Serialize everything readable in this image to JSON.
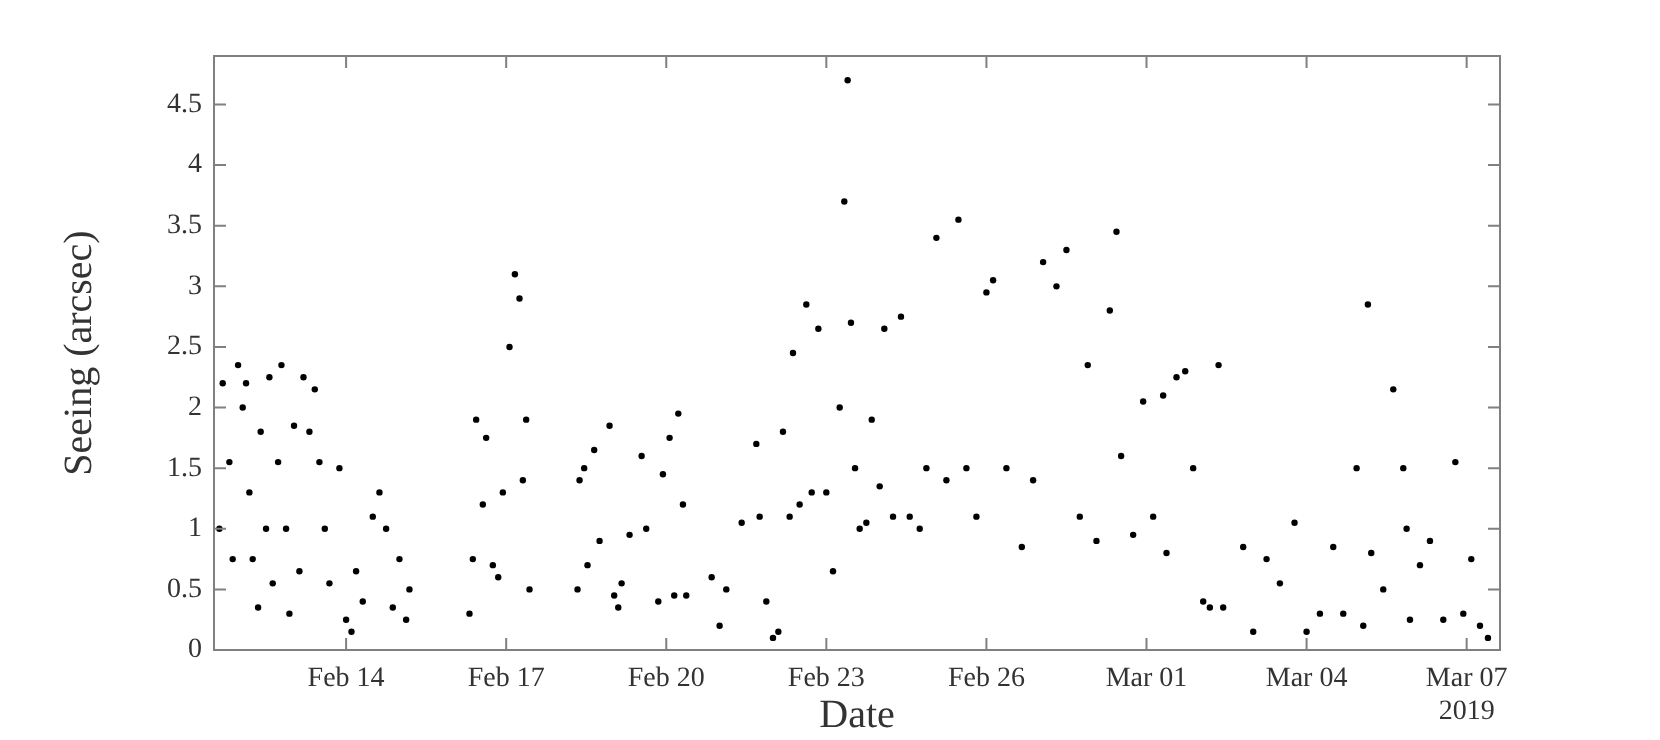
{
  "chart_data": {
    "type": "scatter",
    "xlabel": "Date",
    "ylabel": "Seeing (arcsec)",
    "marker": "circle",
    "xlim": [
      "2019-02-11T12:35",
      "2019-03-07T15:00"
    ],
    "xticks": [
      {
        "value": "2019-02-14",
        "label": "Feb 14"
      },
      {
        "value": "2019-02-17",
        "label": "Feb 17"
      },
      {
        "value": "2019-02-20",
        "label": "Feb 20"
      },
      {
        "value": "2019-02-23",
        "label": "Feb 23"
      },
      {
        "value": "2019-02-26",
        "label": "Feb 26"
      },
      {
        "value": "2019-03-01",
        "label": "Mar 01"
      },
      {
        "value": "2019-03-04",
        "label": "Mar 04"
      },
      {
        "value": "2019-03-07",
        "label": "Mar 07"
      }
    ],
    "ylim": [
      0,
      4.9
    ],
    "yticks": [
      0,
      0.5,
      1,
      1.5,
      2,
      2.5,
      3,
      3.5,
      4,
      4.5
    ],
    "annotations": [
      "2019"
    ],
    "series": [
      {
        "color": "#000000",
        "x": [
          "2019-02-11T15:00",
          "2019-02-11T16:30",
          "2019-02-11T19:30",
          "2019-02-11T21:00",
          "2019-02-11T23:25",
          "2019-02-12T01:30",
          "2019-02-12T03:00",
          "2019-02-12T04:30",
          "2019-02-12T06:00",
          "2019-02-12T08:25",
          "2019-02-12T09:35",
          "2019-02-12T12:00",
          "2019-02-12T13:30",
          "2019-02-12T15:00",
          "2019-02-12T17:25",
          "2019-02-12T18:55",
          "2019-02-12T21:00",
          "2019-02-12T22:30",
          "2019-02-13T00:35",
          "2019-02-13T03:00",
          "2019-02-13T04:50",
          "2019-02-13T07:30",
          "2019-02-13T09:55",
          "2019-02-13T12:00",
          "2019-02-13T14:25",
          "2019-02-13T16:30",
          "2019-02-13T21:00",
          "2019-02-14T00:00",
          "2019-02-14T02:25",
          "2019-02-14T04:30",
          "2019-02-14T07:30",
          "2019-02-14T12:00",
          "2019-02-14T15:00",
          "2019-02-14T18:00",
          "2019-02-14T21:00",
          "2019-02-15T00:00",
          "2019-02-15T03:00",
          "2019-02-15T04:30",
          "2019-02-16T07:30",
          "2019-02-16T09:00",
          "2019-02-16T10:30",
          "2019-02-16T13:30",
          "2019-02-16T15:00",
          "2019-02-16T18:00",
          "2019-02-16T20:25",
          "2019-02-16T22:30",
          "2019-02-17T01:30",
          "2019-02-17T03:55",
          "2019-02-17T06:00",
          "2019-02-17T07:30",
          "2019-02-17T09:00",
          "2019-02-17T10:30",
          "2019-02-18T08:05",
          "2019-02-18T09:00",
          "2019-02-18T11:05",
          "2019-02-18T12:35",
          "2019-02-18T15:35",
          "2019-02-18T18:00",
          "2019-02-18T22:30",
          "2019-02-19T00:35",
          "2019-02-19T02:25",
          "2019-02-19T03:55",
          "2019-02-19T07:30",
          "2019-02-19T12:55",
          "2019-02-19T15:00",
          "2019-02-19T20:25",
          "2019-02-19T22:30",
          "2019-02-20T01:30",
          "2019-02-20T03:35",
          "2019-02-20T05:25",
          "2019-02-20T07:30",
          "2019-02-20T09:00",
          "2019-02-20T20:25",
          "2019-02-21T00:00",
          "2019-02-21T03:00",
          "2019-02-21T09:55",
          "2019-02-21T16:30",
          "2019-02-21T18:00",
          "2019-02-21T21:00",
          "2019-02-22T00:00",
          "2019-02-22T02:25",
          "2019-02-22T04:30",
          "2019-02-22T07:30",
          "2019-02-22T09:00",
          "2019-02-22T12:00",
          "2019-02-22T15:00",
          "2019-02-22T17:25",
          "2019-02-22T20:25",
          "2019-02-23T00:00",
          "2019-02-23T03:00",
          "2019-02-23T06:00",
          "2019-02-23T08:05",
          "2019-02-23T09:35",
          "2019-02-23T11:05",
          "2019-02-23T12:55",
          "2019-02-23T15:00",
          "2019-02-23T18:00",
          "2019-02-23T20:25",
          "2019-02-24T00:00",
          "2019-02-24T02:05",
          "2019-02-24T06:00",
          "2019-02-24T09:35",
          "2019-02-24T13:30",
          "2019-02-24T18:00",
          "2019-02-24T21:00",
          "2019-02-25T01:30",
          "2019-02-25T06:00",
          "2019-02-25T11:25",
          "2019-02-25T15:00",
          "2019-02-25T19:30",
          "2019-02-26T00:00",
          "2019-02-26T03:00",
          "2019-02-26T09:00",
          "2019-02-26T15:55",
          "2019-02-26T21:00",
          "2019-02-27T01:30",
          "2019-02-27T07:30",
          "2019-02-27T12:00",
          "2019-02-27T18:00",
          "2019-02-27T21:35",
          "2019-02-28T01:30",
          "2019-02-28T07:30",
          "2019-02-28T10:30",
          "2019-02-28T12:35",
          "2019-02-28T18:00",
          "2019-02-28T22:30",
          "2019-03-01T03:00",
          "2019-03-01T07:30",
          "2019-03-01T09:00",
          "2019-03-01T13:30",
          "2019-03-01T17:25",
          "2019-03-01T21:00",
          "2019-03-02T01:30",
          "2019-03-02T04:30",
          "2019-03-02T08:25",
          "2019-03-02T10:30",
          "2019-03-02T19:30",
          "2019-03-03T00:00",
          "2019-03-03T06:00",
          "2019-03-03T12:00",
          "2019-03-03T18:35",
          "2019-03-04T00:00",
          "2019-03-04T06:00",
          "2019-03-04T12:00",
          "2019-03-04T16:30",
          "2019-03-04T22:30",
          "2019-03-05T01:30",
          "2019-03-05T03:35",
          "2019-03-05T05:05",
          "2019-03-05T10:30",
          "2019-03-05T15:00",
          "2019-03-05T19:30",
          "2019-03-05T21:00",
          "2019-03-05T22:30",
          "2019-03-06T03:00",
          "2019-03-06T07:30",
          "2019-03-06T13:30",
          "2019-03-06T18:55",
          "2019-03-06T22:30",
          "2019-03-07T02:05",
          "2019-03-07T06:00",
          "2019-03-07T09:35"
        ],
        "values": [
          1.0,
          2.2,
          1.55,
          0.75,
          2.35,
          2.0,
          2.2,
          1.3,
          0.75,
          0.35,
          1.8,
          1.0,
          2.25,
          0.55,
          1.55,
          2.35,
          1.0,
          0.3,
          1.85,
          0.65,
          2.25,
          1.8,
          2.15,
          1.55,
          1.0,
          0.55,
          1.5,
          0.25,
          0.15,
          0.65,
          0.4,
          1.1,
          1.3,
          1.0,
          0.35,
          0.75,
          0.25,
          0.5,
          0.3,
          0.75,
          1.9,
          1.2,
          1.75,
          0.7,
          0.6,
          1.3,
          2.5,
          3.1,
          2.9,
          1.4,
          1.9,
          0.5,
          0.5,
          1.4,
          1.5,
          0.7,
          1.65,
          0.9,
          1.85,
          0.45,
          0.35,
          0.55,
          0.95,
          1.6,
          1.0,
          0.4,
          1.45,
          1.75,
          0.45,
          1.95,
          1.2,
          0.45,
          0.6,
          0.2,
          0.5,
          1.05,
          1.7,
          1.1,
          0.4,
          0.1,
          0.15,
          1.8,
          1.1,
          2.45,
          1.2,
          2.85,
          1.3,
          2.65,
          1.3,
          0.65,
          2.0,
          3.7,
          4.7,
          2.7,
          1.5,
          1.0,
          1.05,
          1.9,
          1.35,
          2.65,
          1.1,
          2.75,
          1.1,
          1.0,
          1.5,
          3.4,
          1.4,
          3.55,
          1.5,
          1.1,
          2.95,
          3.05,
          1.5,
          0.85,
          1.4,
          3.2,
          3.0,
          3.3,
          1.1,
          2.35,
          0.9,
          2.8,
          3.45,
          1.6,
          0.95,
          2.05,
          1.1,
          2.1,
          0.8,
          2.25,
          2.3,
          1.5,
          0.4,
          0.35,
          2.35,
          0.35,
          0.85,
          0.15,
          0.75,
          0.55,
          1.05,
          0.15,
          0.3,
          0.85,
          0.3,
          1.5,
          0.2,
          2.85,
          0.8,
          0.5,
          2.15,
          1.5,
          1.0,
          0.25,
          0.7,
          0.9,
          0.25,
          1.55,
          0.3,
          0.75,
          0.2,
          0.1
        ]
      }
    ]
  }
}
